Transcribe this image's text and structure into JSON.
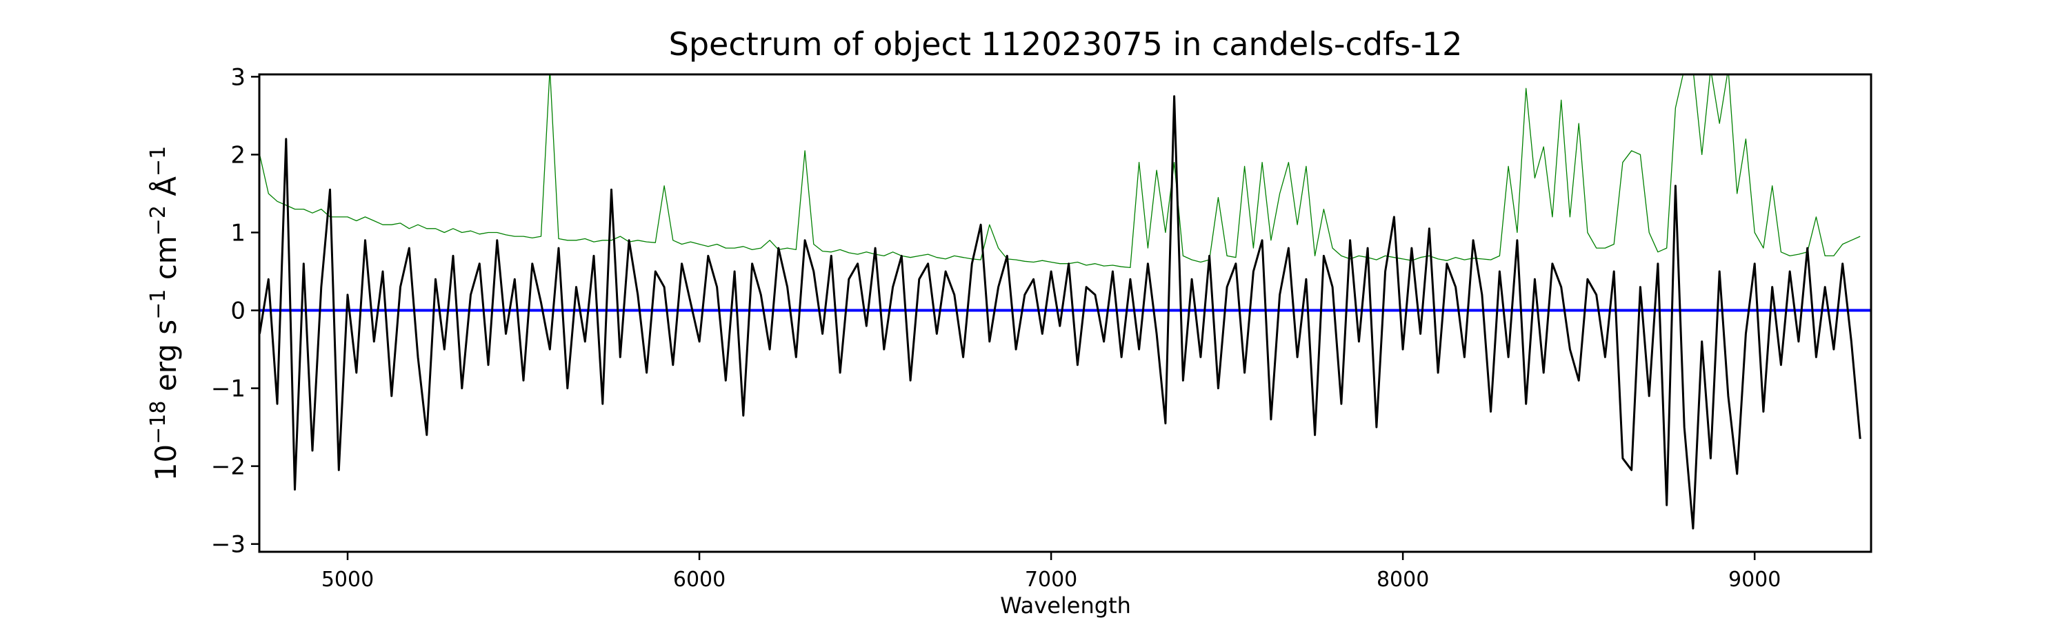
{
  "chart_data": {
    "type": "line",
    "title": "Spectrum of object 112023075 in candels-cdfs-12",
    "xlabel": "Wavelength",
    "ylabel": {
      "base": "10",
      "exp1": "−18",
      "mid1": " erg s",
      "exp2": "−1",
      "mid2": " cm",
      "exp3": "−2",
      "mid3": " Å",
      "exp4": "−1"
    },
    "xlim": [
      4749,
      9331
    ],
    "ylim": [
      -3.1,
      3.03
    ],
    "xticks": [
      5000,
      6000,
      7000,
      8000,
      9000
    ],
    "xtick_labels": [
      "5000",
      "6000",
      "7000",
      "8000",
      "9000"
    ],
    "yticks": [
      -3,
      -2,
      -1,
      0,
      1,
      2,
      3
    ],
    "ytick_labels": [
      "−3",
      "−2",
      "−1",
      "0",
      "1",
      "2",
      "3"
    ],
    "grid": false,
    "x_start": 4750,
    "x_step": 25,
    "series": [
      {
        "name": "error",
        "color": "#008000",
        "values": [
          2.0,
          1.5,
          1.4,
          1.35,
          1.3,
          1.3,
          1.25,
          1.3,
          1.2,
          1.2,
          1.2,
          1.15,
          1.2,
          1.15,
          1.1,
          1.1,
          1.12,
          1.05,
          1.1,
          1.05,
          1.05,
          1.0,
          1.05,
          1.0,
          1.02,
          0.98,
          1.0,
          1.0,
          0.97,
          0.95,
          0.95,
          0.93,
          0.95,
          3.1,
          0.92,
          0.9,
          0.9,
          0.92,
          0.88,
          0.9,
          0.9,
          0.95,
          0.88,
          0.9,
          0.88,
          0.87,
          1.6,
          0.9,
          0.85,
          0.88,
          0.85,
          0.82,
          0.85,
          0.8,
          0.8,
          0.82,
          0.78,
          0.8,
          0.9,
          0.78,
          0.8,
          0.78,
          2.05,
          0.85,
          0.76,
          0.75,
          0.78,
          0.74,
          0.72,
          0.75,
          0.72,
          0.7,
          0.75,
          0.7,
          0.68,
          0.7,
          0.72,
          0.68,
          0.66,
          0.7,
          0.68,
          0.66,
          0.65,
          1.1,
          0.8,
          0.66,
          0.65,
          0.63,
          0.62,
          0.64,
          0.62,
          0.6,
          0.6,
          0.62,
          0.58,
          0.6,
          0.57,
          0.58,
          0.56,
          0.55,
          1.9,
          0.8,
          1.8,
          1.0,
          1.9,
          0.7,
          0.65,
          0.62,
          0.65,
          1.45,
          0.7,
          0.68,
          1.85,
          0.8,
          1.9,
          0.9,
          1.5,
          1.9,
          1.1,
          1.85,
          0.7,
          1.3,
          0.8,
          0.7,
          0.66,
          0.7,
          0.68,
          0.65,
          0.7,
          0.68,
          0.66,
          0.64,
          0.68,
          0.7,
          0.66,
          0.64,
          0.68,
          0.65,
          0.67,
          0.66,
          0.65,
          0.7,
          1.85,
          1.0,
          2.85,
          1.7,
          2.1,
          1.2,
          2.7,
          1.2,
          2.4,
          1.0,
          0.8,
          0.8,
          0.85,
          1.9,
          2.05,
          2.0,
          1.0,
          0.75,
          0.8,
          2.6,
          3.1,
          3.1,
          2.0,
          3.1,
          2.4,
          3.1,
          1.5,
          2.2,
          1.0,
          0.8,
          1.6,
          0.75,
          0.7,
          0.72,
          0.75,
          1.2,
          0.7,
          0.7,
          0.85,
          0.9,
          0.95
        ]
      },
      {
        "name": "zero",
        "color": "#0000ff",
        "values": [
          0,
          0
        ],
        "x": [
          4749,
          9331
        ]
      },
      {
        "name": "flux",
        "color": "#000000",
        "values": [
          -0.3,
          0.4,
          -1.2,
          2.2,
          -2.3,
          0.6,
          -1.8,
          0.3,
          1.55,
          -2.05,
          0.2,
          -0.8,
          0.9,
          -0.4,
          0.5,
          -1.1,
          0.3,
          0.8,
          -0.6,
          -1.6,
          0.4,
          -0.5,
          0.7,
          -1.0,
          0.2,
          0.6,
          -0.7,
          0.9,
          -0.3,
          0.4,
          -0.9,
          0.6,
          0.1,
          -0.5,
          0.8,
          -1.0,
          0.3,
          -0.4,
          0.7,
          -1.2,
          1.55,
          -0.6,
          0.9,
          0.2,
          -0.8,
          0.5,
          0.3,
          -0.7,
          0.6,
          0.1,
          -0.4,
          0.7,
          0.3,
          -0.9,
          0.5,
          -1.35,
          0.6,
          0.2,
          -0.5,
          0.8,
          0.3,
          -0.6,
          0.9,
          0.5,
          -0.3,
          0.7,
          -0.8,
          0.4,
          0.6,
          -0.2,
          0.8,
          -0.5,
          0.3,
          0.7,
          -0.9,
          0.4,
          0.6,
          -0.3,
          0.5,
          0.2,
          -0.6,
          0.6,
          1.1,
          -0.4,
          0.3,
          0.7,
          -0.5,
          0.2,
          0.4,
          -0.3,
          0.5,
          -0.2,
          0.6,
          -0.7,
          0.3,
          0.2,
          -0.4,
          0.5,
          -0.6,
          0.4,
          -0.5,
          0.6,
          -0.3,
          -1.45,
          2.75,
          -0.9,
          0.4,
          -0.6,
          0.7,
          -1.0,
          0.3,
          0.6,
          -0.8,
          0.5,
          0.9,
          -1.4,
          0.2,
          0.8,
          -0.6,
          0.4,
          -1.6,
          0.7,
          0.3,
          -1.2,
          0.9,
          -0.4,
          0.8,
          -1.5,
          0.5,
          1.2,
          -0.5,
          0.8,
          -0.3,
          1.05,
          -0.8,
          0.6,
          0.3,
          -0.6,
          0.9,
          0.2,
          -1.3,
          0.5,
          -0.6,
          0.9,
          -1.2,
          0.4,
          -0.8,
          0.6,
          0.3,
          -0.5,
          -0.9,
          0.4,
          0.2,
          -0.6,
          0.5,
          -1.9,
          -2.05,
          0.3,
          -1.1,
          0.6,
          -2.5,
          1.6,
          -1.5,
          -2.8,
          -0.4,
          -1.9,
          0.5,
          -1.1,
          -2.1,
          -0.3,
          0.6,
          -1.3,
          0.3,
          -0.7,
          0.5,
          -0.4,
          0.8,
          -0.6,
          0.3,
          -0.5,
          0.6,
          -0.4,
          -1.65
        ]
      }
    ]
  }
}
